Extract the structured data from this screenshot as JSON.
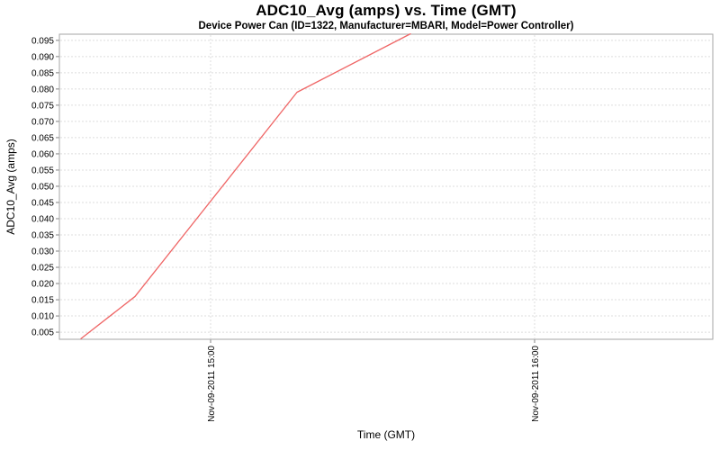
{
  "chart_data": {
    "type": "line",
    "title": "ADC10_Avg (amps) vs. Time (GMT)",
    "subtitle": "Device Power Can (ID=1322, Manufacturer=MBARI, Model=Power Controller)",
    "xlabel": "Time (GMT)",
    "ylabel": "ADC10_Avg (amps)",
    "legend": "none",
    "grid": true,
    "x_axis": {
      "range_start": "14:32",
      "range_end": "16:33",
      "ticks": [
        {
          "label": "Nov-09-2011 15:00",
          "time": "15:00"
        },
        {
          "label": "Nov-09-2011 16:00",
          "time": "16:00"
        }
      ]
    },
    "y_axis": {
      "min": 0.0028,
      "max": 0.0969,
      "tick_start": 0.005,
      "tick_end": 0.095,
      "tick_step": 0.005,
      "tick_decimals": 3
    },
    "series": [
      {
        "name": "ADC10_Avg",
        "color": "#ef6666",
        "points": [
          [
            "14:36",
            0.003
          ],
          [
            "14:46",
            0.016
          ],
          [
            "15:16",
            0.079
          ],
          [
            "15:37",
            0.097
          ]
        ]
      }
    ],
    "colors": {
      "background": "#ffffff",
      "plot_background": "#ffffff",
      "grid": "#dedede",
      "border": "#a6a6a6",
      "tick": "#808080",
      "text": "#000000"
    }
  }
}
